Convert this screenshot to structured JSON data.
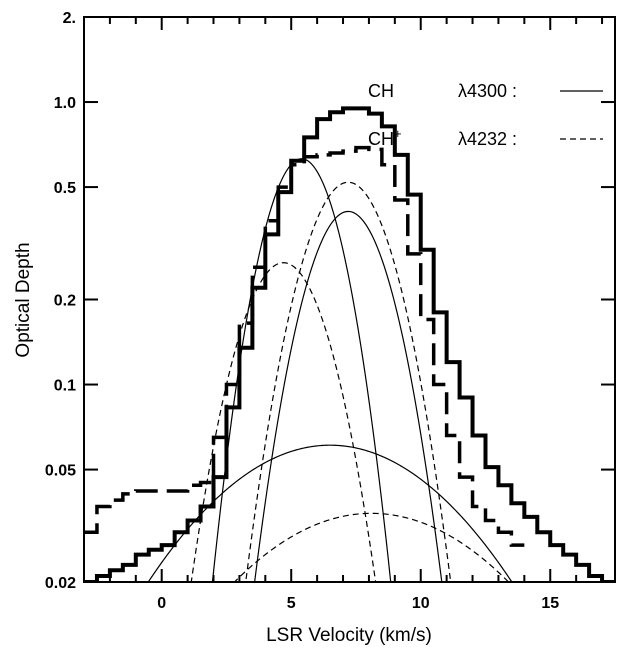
{
  "chart_data": {
    "type": "line",
    "title": "",
    "xlabel": "LSR Velocity (km/s)",
    "ylabel": "Optical Depth",
    "xlim": [
      -3.0,
      17.5
    ],
    "ylim": [
      0.02,
      2.0
    ],
    "yscale": "log",
    "grid": false,
    "legend_placement": "top-right",
    "x_ticks": [
      {
        "value": 0,
        "label": "0"
      },
      {
        "value": 5,
        "label": "5"
      },
      {
        "value": 10,
        "label": "10"
      },
      {
        "value": 15,
        "label": "15"
      }
    ],
    "y_ticks": [
      {
        "value": 0.02,
        "label": "0.02"
      },
      {
        "value": 0.05,
        "label": "0.05"
      },
      {
        "value": 0.1,
        "label": "0.1"
      },
      {
        "value": 0.2,
        "label": "0.2"
      },
      {
        "value": 0.5,
        "label": "0.5"
      },
      {
        "value": 1.0,
        "label": "1.0"
      },
      {
        "value": 2.0,
        "label": "2."
      }
    ],
    "legend": [
      {
        "species": "CH",
        "superscript": "",
        "line": "λ4300 :",
        "style": "solid"
      },
      {
        "species": "CH",
        "superscript": "+",
        "line": "λ4232 :",
        "style": "dashed"
      }
    ],
    "histograms": [
      {
        "style": "solid",
        "bin_width": 0.5,
        "x_start": -3.0,
        "values": [
          0.02,
          0.021,
          0.022,
          0.023,
          0.025,
          0.026,
          0.027,
          0.03,
          0.033,
          0.037,
          0.047,
          0.083,
          0.135,
          0.22,
          0.34,
          0.48,
          0.62,
          0.75,
          0.87,
          0.92,
          0.95,
          0.95,
          0.91,
          0.82,
          0.65,
          0.47,
          0.3,
          0.18,
          0.12,
          0.09,
          0.066,
          0.051,
          0.044,
          0.038,
          0.034,
          0.03,
          0.027,
          0.025,
          0.023,
          0.021,
          0.02
        ]
      },
      {
        "style": "dashed",
        "bin_width": 0.5,
        "x_start": -3.0,
        "values": [
          0.03,
          0.037,
          0.039,
          0.041,
          0.042,
          0.042,
          0.042,
          0.042,
          0.044,
          0.045,
          0.065,
          0.1,
          0.165,
          0.26,
          0.38,
          0.5,
          0.6,
          0.64,
          0.65,
          0.66,
          0.67,
          0.69,
          0.68,
          0.6,
          0.45,
          0.29,
          0.17,
          0.1,
          0.066,
          0.047,
          0.037,
          0.033,
          0.03,
          0.027
        ]
      }
    ],
    "gaussian_components": [
      {
        "style": "solid",
        "peak": 0.63,
        "center": 5.4,
        "sigma": 1.31
      },
      {
        "style": "solid",
        "peak": 0.41,
        "center": 7.2,
        "sigma": 1.47
      },
      {
        "style": "solid",
        "peak": 0.061,
        "center": 6.5,
        "sigma": 4.7
      },
      {
        "style": "dashed",
        "peak": 0.27,
        "center": 4.7,
        "sigma": 1.56
      },
      {
        "style": "dashed",
        "peak": 0.52,
        "center": 7.2,
        "sigma": 1.55
      },
      {
        "style": "dashed",
        "peak": 0.035,
        "center": 8.1,
        "sigma": 5.0
      }
    ]
  }
}
